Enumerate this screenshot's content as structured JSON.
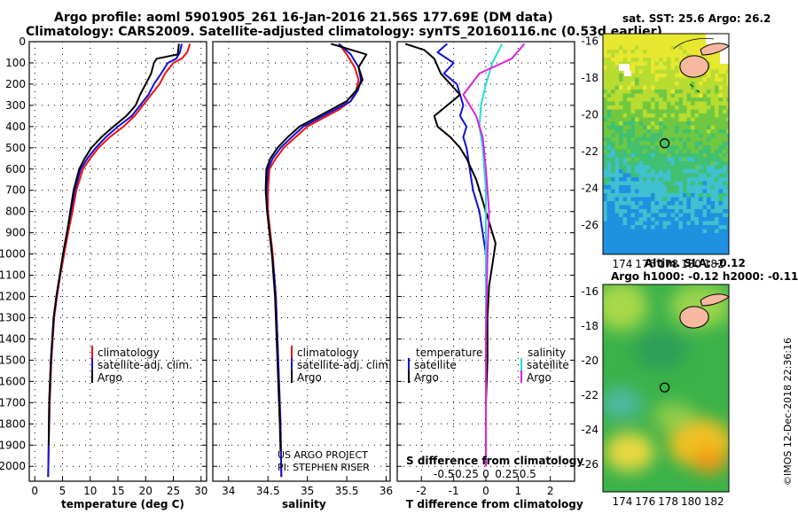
{
  "titles": {
    "line1": "Argo profile: aoml 5901905_261 16-Jan-2016 21.56S 177.69E (DM data)",
    "line2": "Climatology: CARS2009. Satellite-adjusted climatology: synTS_20160116.nc (0.53d earlier)"
  },
  "credit": [
    "US ARGO PROJECT",
    "PI: STEPHEN RISER"
  ],
  "imos_stamp": "©IMOS 12-Dec-2018 22:36:16",
  "colors": {
    "climatology": "#ee1111",
    "satellite": "#1010dd",
    "argo": "#000000",
    "sat_s": "#22dddd",
    "argo_s": "#dd22dd"
  },
  "chart_data": [
    {
      "id": "temperature",
      "type": "line",
      "xlabel": "temperature (deg C)",
      "ylabel": "",
      "xlim": [
        -1,
        31
      ],
      "ylim": [
        2070,
        0
      ],
      "xticks": [
        0,
        5,
        10,
        15,
        20,
        25,
        30
      ],
      "yticks": [
        0,
        100,
        200,
        300,
        400,
        500,
        600,
        700,
        800,
        900,
        1000,
        1100,
        1200,
        1300,
        1400,
        1500,
        1600,
        1700,
        1800,
        1900,
        2000
      ],
      "legend": [
        "climatology",
        "satellite-adj. clim.",
        "Argo"
      ],
      "series": [
        {
          "name": "climatology",
          "color": "climatology",
          "x": [
            28,
            27.5,
            26.5,
            25,
            23.5,
            22.5,
            21,
            19.5,
            18,
            16,
            13.5,
            11.5,
            10,
            8.7,
            7.5,
            6.8,
            6,
            5.3,
            4.6,
            4,
            3.5,
            3,
            2.7,
            2.5,
            2.4
          ],
          "y": [
            10,
            50,
            80,
            100,
            150,
            200,
            250,
            300,
            350,
            400,
            450,
            500,
            550,
            600,
            700,
            800,
            900,
            1000,
            1100,
            1200,
            1300,
            1500,
            1700,
            1900,
            2050
          ]
        },
        {
          "name": "satellite-adj. clim.",
          "color": "satellite",
          "x": [
            26.5,
            26.2,
            25.5,
            24,
            22.8,
            21.5,
            20.5,
            19,
            17.5,
            15,
            12.8,
            11,
            9.5,
            8.3,
            7.2,
            6.5,
            5.8,
            5.1,
            4.5,
            3.9,
            3.4,
            2.9,
            2.6,
            2.5,
            2.4
          ],
          "y": [
            10,
            50,
            80,
            100,
            150,
            200,
            250,
            300,
            350,
            400,
            450,
            500,
            550,
            600,
            700,
            800,
            900,
            1000,
            1100,
            1200,
            1300,
            1500,
            1700,
            1900,
            2050
          ]
        },
        {
          "name": "Argo",
          "color": "argo",
          "x": [
            26,
            25.8,
            22,
            21.5,
            21,
            20,
            19,
            18.2,
            16.5,
            14.2,
            12,
            10.2,
            9,
            8,
            7,
            6.4,
            5.8,
            5.1,
            4.5,
            3.9,
            3.4,
            2.9,
            2.6,
            2.5
          ],
          "y": [
            10,
            60,
            80,
            100,
            150,
            200,
            250,
            300,
            350,
            400,
            450,
            500,
            550,
            600,
            700,
            800,
            900,
            1000,
            1100,
            1200,
            1300,
            1500,
            1700,
            1900
          ]
        }
      ]
    },
    {
      "id": "salinity",
      "type": "line",
      "xlabel": "salinity",
      "ylabel": "",
      "xlim": [
        33.8,
        36.05
      ],
      "ylim": [
        2070,
        0
      ],
      "xticks": [
        34,
        34.5,
        35,
        35.5,
        36
      ],
      "xticklabels": [
        "34",
        "34.5",
        "35",
        "35.5",
        "36"
      ],
      "legend": [
        "climatology",
        "satellite-adj. clim.",
        "Argo"
      ],
      "series": [
        {
          "name": "climatology",
          "color": "climatology",
          "x": [
            35.4,
            35.5,
            35.6,
            35.65,
            35.62,
            35.55,
            35.4,
            35.2,
            35.0,
            34.85,
            34.7,
            34.6,
            34.52,
            34.5,
            34.5,
            34.53,
            34.56,
            34.58,
            34.6,
            34.62,
            34.64,
            34.66,
            34.67
          ],
          "y": [
            10,
            60,
            120,
            180,
            230,
            280,
            320,
            360,
            400,
            450,
            500,
            550,
            600,
            700,
            800,
            900,
            1000,
            1100,
            1200,
            1400,
            1600,
            1800,
            2050
          ]
        },
        {
          "name": "satellite-adj. clim.",
          "color": "satellite",
          "x": [
            35.4,
            35.55,
            35.65,
            35.68,
            35.64,
            35.55,
            35.35,
            35.15,
            34.95,
            34.8,
            34.66,
            34.56,
            34.5,
            34.48,
            34.49,
            34.52,
            34.55,
            34.58,
            34.6,
            34.62,
            34.64,
            34.66,
            34.67
          ],
          "y": [
            10,
            60,
            120,
            180,
            230,
            280,
            320,
            360,
            400,
            450,
            500,
            550,
            600,
            700,
            800,
            900,
            1000,
            1100,
            1200,
            1400,
            1600,
            1800,
            2050
          ]
        },
        {
          "name": "Argo",
          "color": "argo",
          "x": [
            35.3,
            35.75,
            35.65,
            35.7,
            35.62,
            35.5,
            35.3,
            35.1,
            34.9,
            34.75,
            34.62,
            34.53,
            34.48,
            34.47,
            34.49,
            34.52,
            34.55,
            34.57,
            34.59,
            34.61,
            34.63,
            34.65,
            34.66
          ],
          "y": [
            10,
            60,
            120,
            180,
            230,
            280,
            320,
            360,
            400,
            450,
            500,
            550,
            600,
            700,
            800,
            900,
            1000,
            1100,
            1200,
            1400,
            1600,
            1800,
            1930
          ]
        }
      ]
    },
    {
      "id": "difference",
      "type": "line",
      "xlabel": "T difference from climatology",
      "ylabel": "",
      "xlim": [
        -2.75,
        2.75
      ],
      "ylim": [
        2070,
        0
      ],
      "xticks": [
        -2,
        -1,
        0,
        1,
        2
      ],
      "sticks": [
        -0.5,
        -0.25,
        0,
        0.25,
        0.5
      ],
      "sticklabels": [
        "-0.5",
        "-0.25",
        "0",
        "0.25",
        "0.5"
      ],
      "s_axis_label": "S difference from climatology",
      "legend_temperature": {
        "title": "temperature",
        "items": [
          "satellite",
          "Argo"
        ]
      },
      "legend_salinity": {
        "title": "salinity",
        "items": [
          "satellite",
          "Argo"
        ]
      },
      "series": [
        {
          "name": "satellite",
          "color": "satellite",
          "x": [
            -1.2,
            -1.5,
            -1.0,
            -1.3,
            -0.9,
            -0.8,
            -0.7,
            -0.8,
            -0.6,
            -0.7,
            -0.6,
            -0.5,
            -0.4,
            -0.2,
            -0.1,
            0,
            0
          ],
          "y": [
            10,
            50,
            100,
            150,
            200,
            250,
            300,
            350,
            400,
            450,
            500,
            600,
            700,
            800,
            900,
            1000,
            2000
          ]
        },
        {
          "name": "Argo",
          "color": "argo",
          "x": [
            -2.5,
            -1.9,
            -1.6,
            -1.4,
            -1.1,
            -0.8,
            -1.2,
            -1.6,
            -1.5,
            -1.1,
            -0.8,
            -0.6,
            -0.3,
            -0.1,
            0.1,
            0.3,
            0.2,
            0.1,
            0.05,
            0.05,
            0,
            0
          ],
          "y": [
            10,
            40,
            80,
            150,
            200,
            250,
            300,
            350,
            400,
            450,
            500,
            550,
            650,
            750,
            850,
            950,
            1050,
            1150,
            1300,
            1500,
            1700,
            1900
          ]
        },
        {
          "name": "satellite salinity",
          "color": "sat_s",
          "x": [
            0.5,
            0.2,
            0,
            -0.15,
            -0.2,
            -0.1,
            -0.05,
            0,
            0,
            0
          ],
          "y": [
            10,
            100,
            200,
            300,
            400,
            500,
            600,
            700,
            1000,
            2000
          ]
        },
        {
          "name": "Argo salinity",
          "color": "argo_s",
          "x": [
            1.2,
            0.8,
            -0.2,
            -0.7,
            -0.3,
            -0.1,
            0,
            0.1,
            0.05,
            0,
            0
          ],
          "y": [
            10,
            80,
            150,
            250,
            350,
            450,
            600,
            800,
            1000,
            1400,
            2000
          ]
        }
      ]
    },
    {
      "id": "sst_map",
      "type": "heatmap",
      "title": "sat. SST: 25.6 Argo: 26.2",
      "xlim": [
        172.3,
        183.3
      ],
      "ylim": [
        -27.6,
        -15.6
      ],
      "xticks": [
        174,
        176,
        178,
        180,
        182
      ],
      "yticks": [
        -16,
        -18,
        -20,
        -22,
        -24,
        -26
      ],
      "marker": {
        "lon": 177.69,
        "lat": -21.56
      }
    },
    {
      "id": "sla_map",
      "type": "heatmap",
      "title1": "Altim. SLA: -0.12",
      "title2": "Argo h1000: -0.12 h2000: -0.11",
      "xlim": [
        172.3,
        183.3
      ],
      "ylim": [
        -27.6,
        -15.6
      ],
      "xticks": [
        174,
        176,
        178,
        180,
        182
      ],
      "yticks": [
        -16,
        -18,
        -20,
        -22,
        -24,
        -26
      ],
      "marker": {
        "lon": 177.69,
        "lat": -21.56
      }
    }
  ]
}
